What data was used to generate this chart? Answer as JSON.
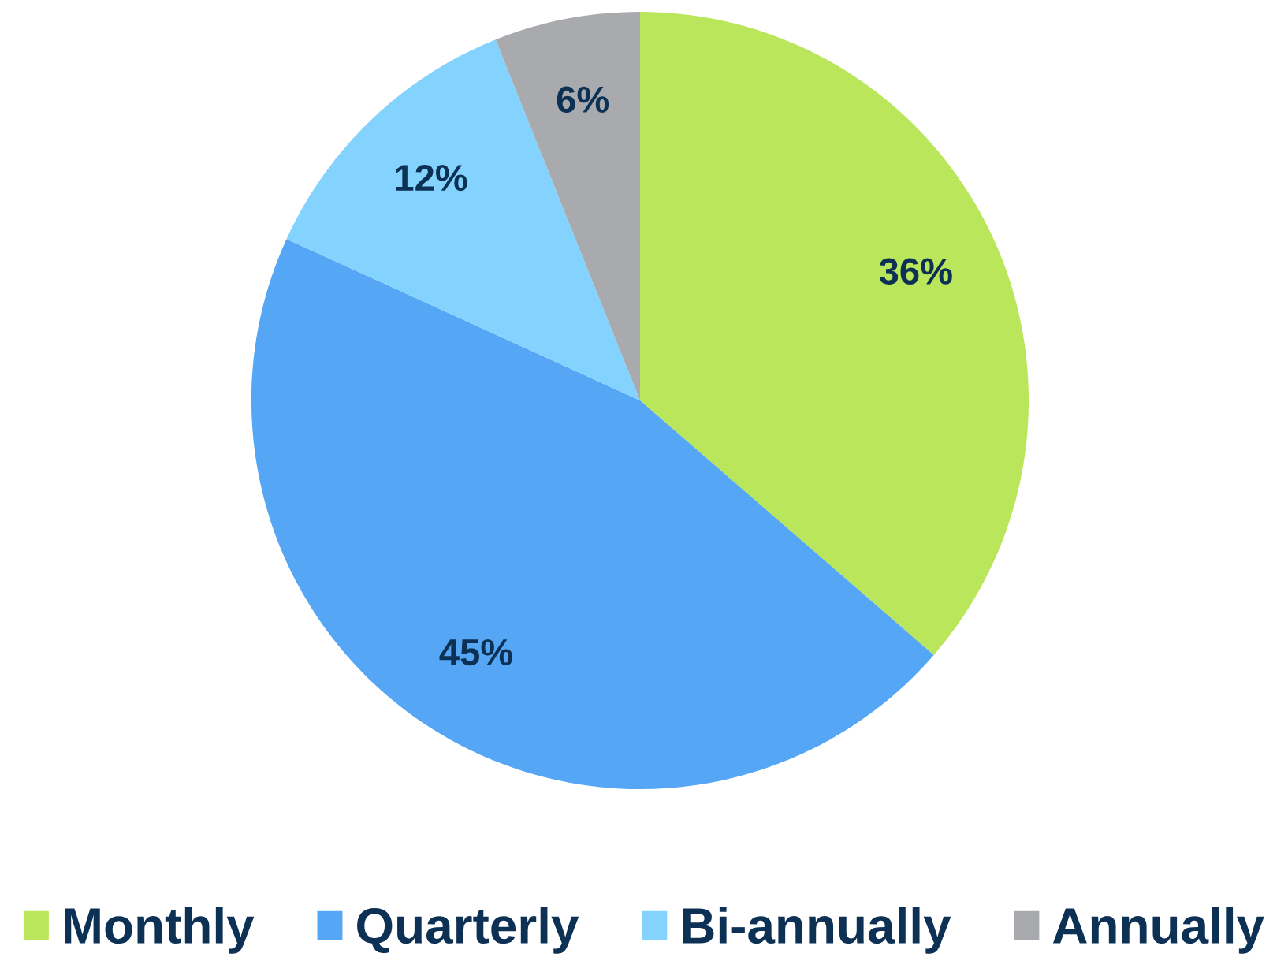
{
  "chart_data": {
    "type": "pie",
    "categories": [
      "Monthly",
      "Quarterly",
      "Bi-annually",
      "Annually"
    ],
    "values": [
      36,
      45,
      12,
      6
    ],
    "colors": [
      "#b9e65a",
      "#55a6f4",
      "#84d2fe",
      "#a8aaae"
    ],
    "value_labels": [
      "36%",
      "45%",
      "12%",
      "6%"
    ],
    "legend": "bottom"
  }
}
